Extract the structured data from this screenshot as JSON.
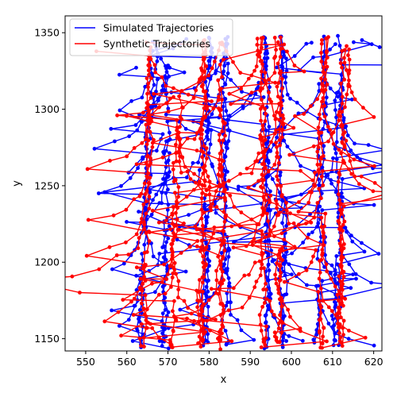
{
  "chart_data": {
    "type": "line",
    "title": "",
    "xlabel": "x",
    "ylabel": "y",
    "xlim": [
      545,
      622
    ],
    "ylim": [
      1142,
      1361
    ],
    "x_ticks": [
      550,
      560,
      570,
      580,
      590,
      600,
      610,
      620
    ],
    "y_ticks": [
      1150,
      1200,
      1250,
      1300,
      1350
    ],
    "grid": false,
    "legend_position": "top-left",
    "series": [
      {
        "name": "Simulated Trajectories",
        "color": "#0000ff",
        "lanes": [
          [
            563,
            1146,
            567,
            1345
          ],
          [
            569,
            1146,
            570,
            1328
          ],
          [
            579,
            1146,
            580,
            1345
          ],
          [
            584,
            1146,
            584,
            1345
          ],
          [
            594,
            1146,
            594,
            1345
          ],
          [
            598,
            1146,
            598,
            1345
          ],
          [
            606,
            1146,
            608,
            1345
          ],
          [
            611,
            1146,
            612,
            1345
          ]
        ]
      },
      {
        "name": "Synthetic Trajectories",
        "color": "#ff0000",
        "lanes": [
          [
            564,
            1146,
            566,
            1340
          ],
          [
            571,
            1146,
            573,
            1310
          ],
          [
            578,
            1146,
            579,
            1345
          ],
          [
            583,
            1146,
            583,
            1345
          ],
          [
            593,
            1146,
            593,
            1345
          ],
          [
            597,
            1146,
            597,
            1345
          ],
          [
            607,
            1146,
            608,
            1345
          ],
          [
            612,
            1146,
            613,
            1340
          ]
        ]
      }
    ]
  }
}
